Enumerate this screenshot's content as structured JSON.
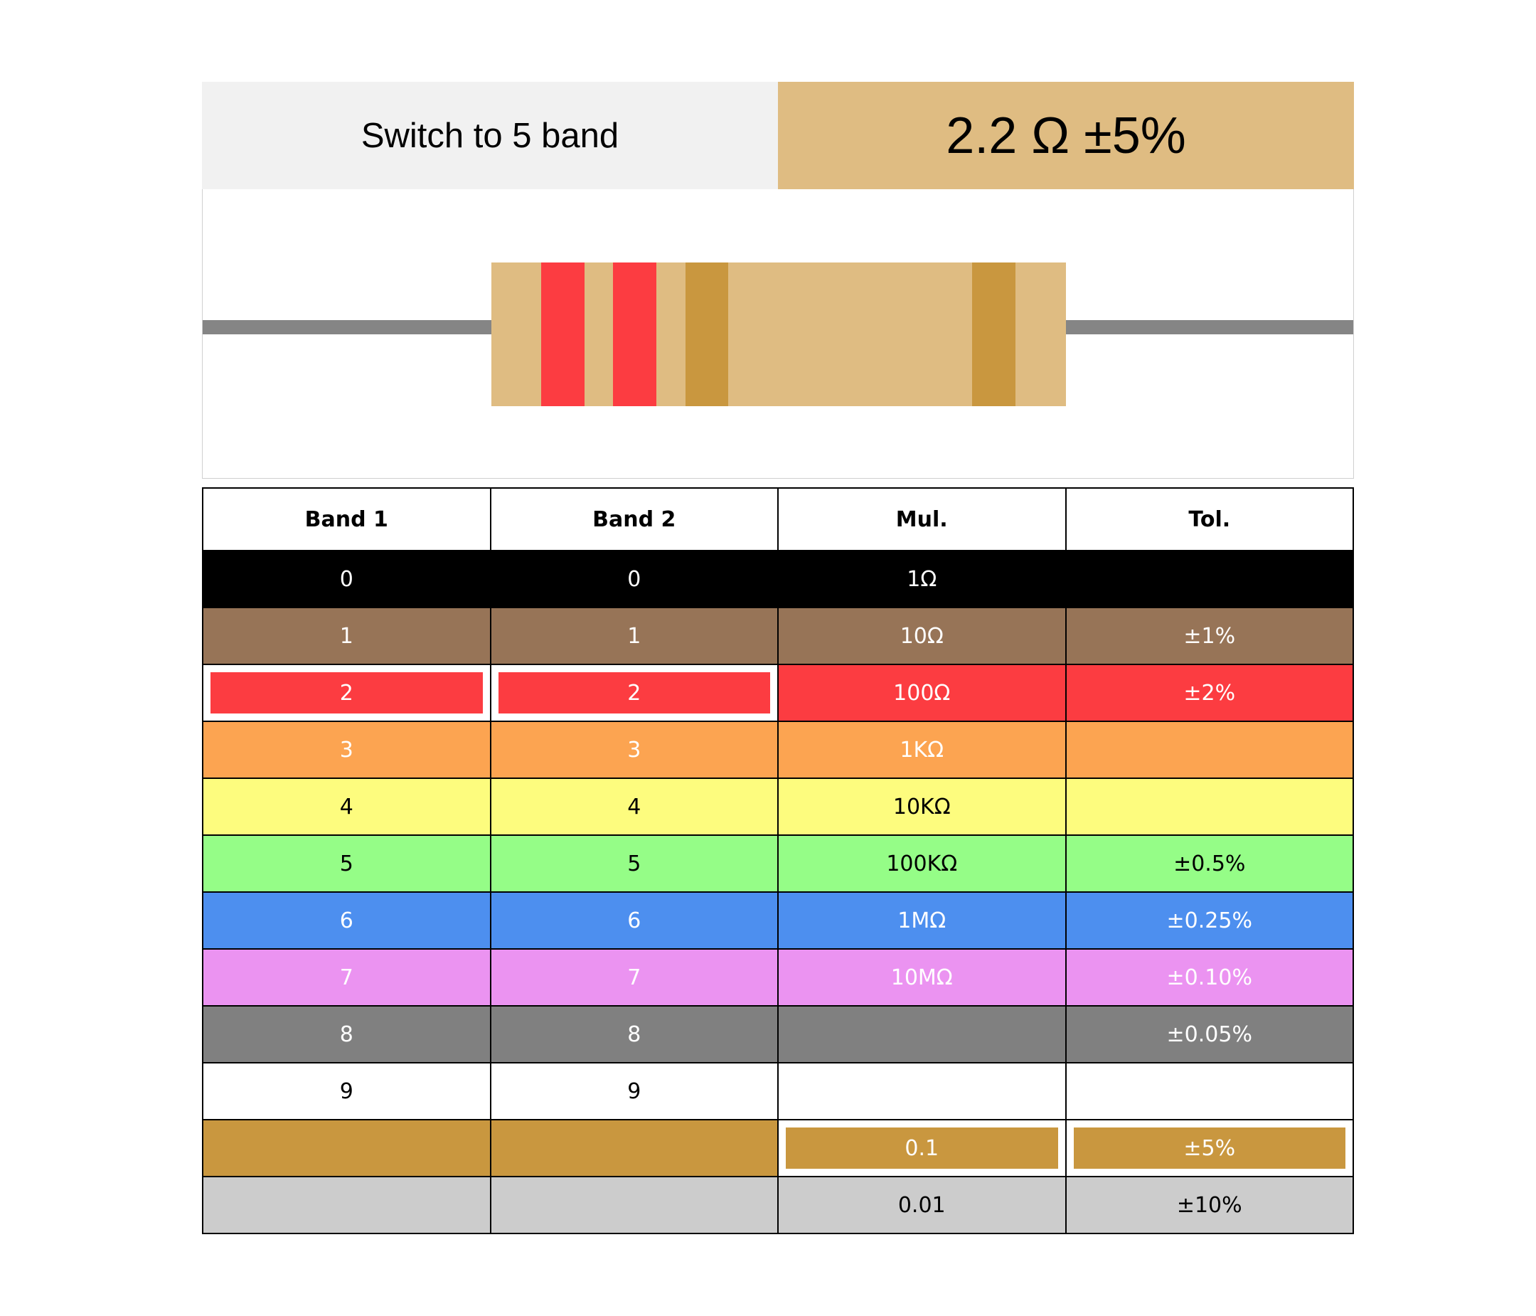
{
  "switch_button": {
    "label": "Switch to 5 band"
  },
  "display": {
    "value": "2.2 Ω ±5%",
    "background": "#dfbc82"
  },
  "resistor": {
    "wire_color": "#858585",
    "body_color": "#dfbc82",
    "bands": [
      {
        "name": "band1",
        "color": "#fc3c41"
      },
      {
        "name": "band2",
        "color": "#fc3c41"
      },
      {
        "name": "multiplier",
        "color": "#c9973f"
      },
      {
        "name": "tolerance",
        "color": "#c9973f"
      }
    ]
  },
  "table": {
    "headers": [
      "Band 1",
      "Band 2",
      "Mul.",
      "Tol."
    ],
    "rows": [
      {
        "color": "black",
        "bg": "#000000",
        "fg": "#ffffff",
        "cells": [
          "0",
          "0",
          "1Ω",
          ""
        ]
      },
      {
        "color": "brown",
        "bg": "#977457",
        "fg": "#ffffff",
        "cells": [
          "1",
          "1",
          "10Ω",
          "±1%"
        ]
      },
      {
        "color": "red",
        "bg": "#fc3c41",
        "fg": "#ffffff",
        "cells": [
          "2",
          "2",
          "100Ω",
          "±2%"
        ]
      },
      {
        "color": "orange",
        "bg": "#fca451",
        "fg": "#ffffff",
        "cells": [
          "3",
          "3",
          "1KΩ",
          ""
        ]
      },
      {
        "color": "yellow",
        "bg": "#fdfc7e",
        "fg": "#000000",
        "cells": [
          "4",
          "4",
          "10KΩ",
          ""
        ]
      },
      {
        "color": "green",
        "bg": "#95fd87",
        "fg": "#000000",
        "cells": [
          "5",
          "5",
          "100KΩ",
          "±0.5%"
        ]
      },
      {
        "color": "blue",
        "bg": "#4d8fef",
        "fg": "#ffffff",
        "cells": [
          "6",
          "6",
          "1MΩ",
          "±0.25%"
        ]
      },
      {
        "color": "violet",
        "bg": "#eb93f1",
        "fg": "#ffffff",
        "cells": [
          "7",
          "7",
          "10MΩ",
          "±0.10%"
        ]
      },
      {
        "color": "grey",
        "bg": "#808080",
        "fg": "#ffffff",
        "cells": [
          "8",
          "8",
          "",
          "±0.05%"
        ]
      },
      {
        "color": "white",
        "bg": "#ffffff",
        "fg": "#000000",
        "cells": [
          "9",
          "9",
          "",
          ""
        ]
      },
      {
        "color": "gold",
        "bg": "#c9973f",
        "fg": "#ffffff",
        "cells": [
          "",
          "",
          "0.1",
          "±5%"
        ]
      },
      {
        "color": "silver",
        "bg": "#cccccc",
        "fg": "#000000",
        "cells": [
          "",
          "",
          "0.01",
          "±10%"
        ]
      }
    ],
    "selected": [
      [
        2,
        0
      ],
      [
        2,
        1
      ],
      [
        10,
        2
      ],
      [
        10,
        3
      ]
    ]
  }
}
